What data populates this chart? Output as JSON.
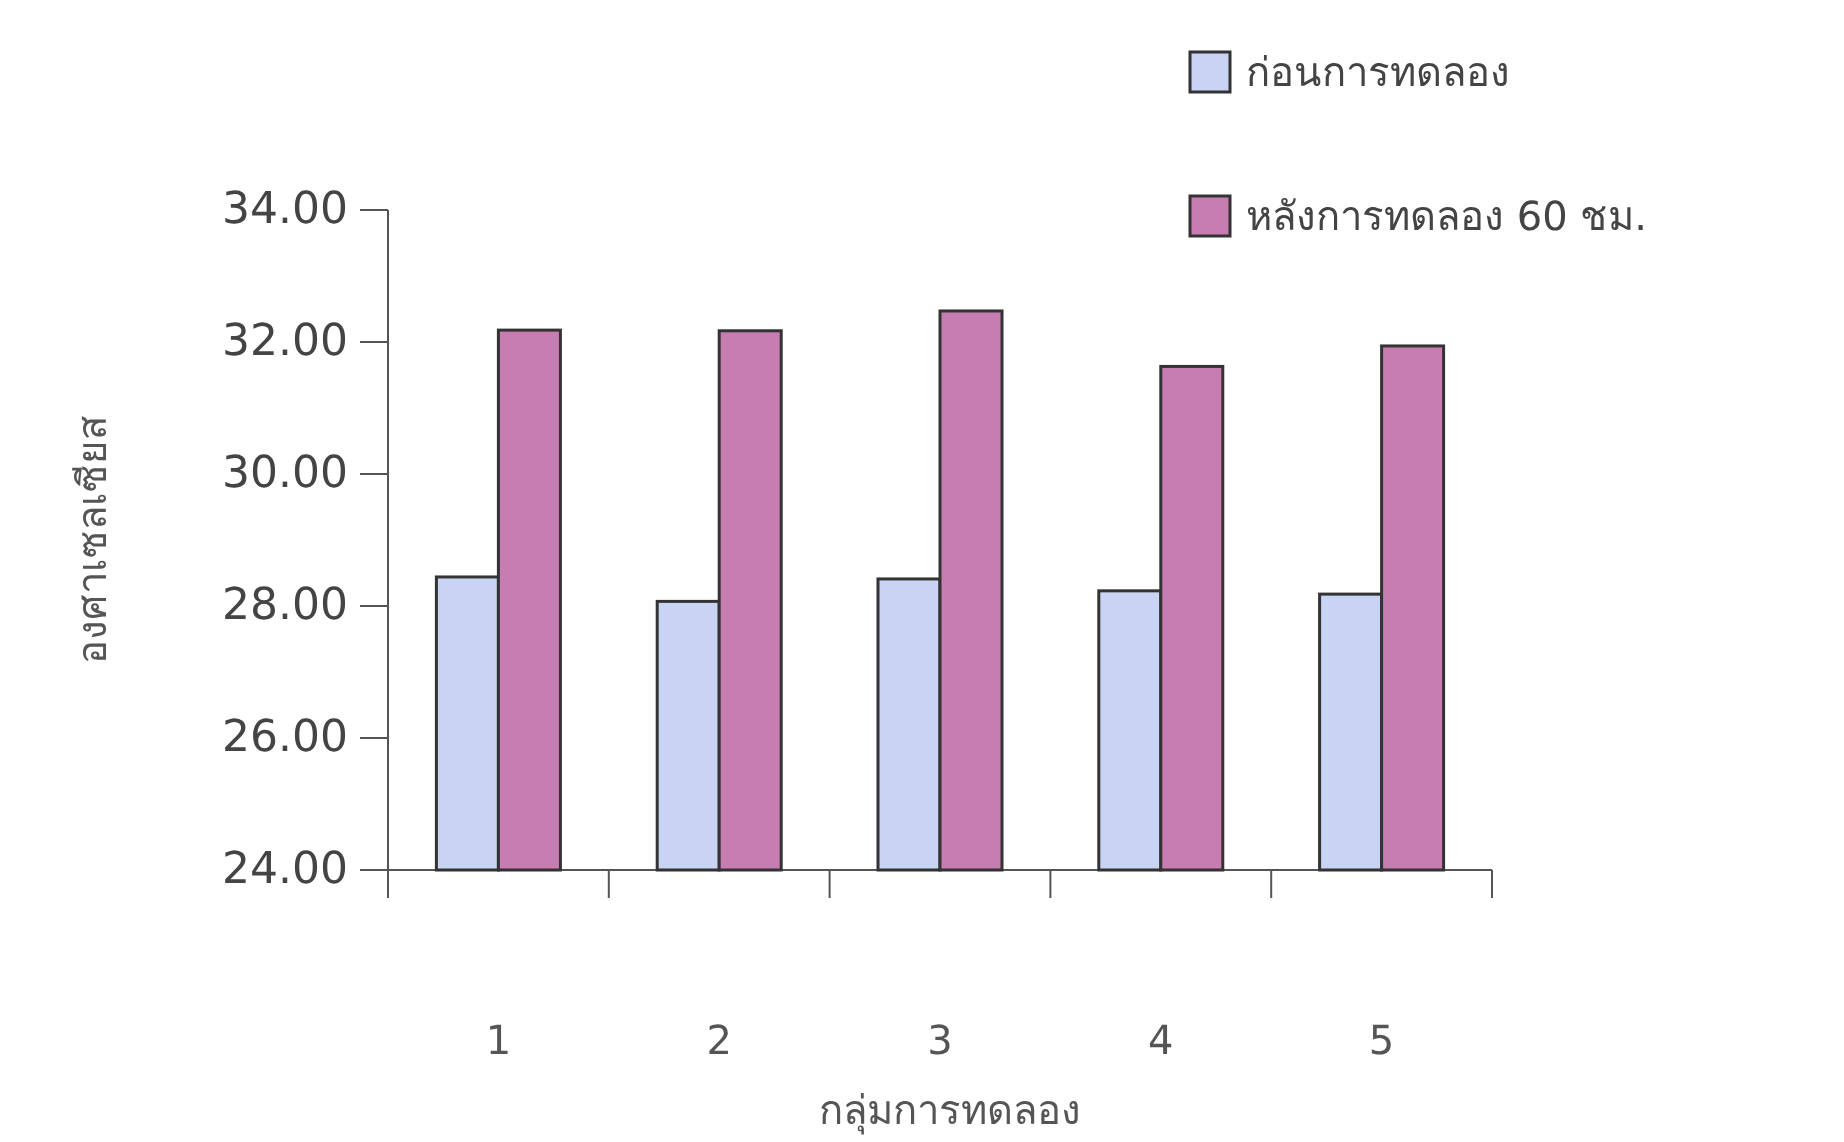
{
  "chart_data": {
    "type": "bar",
    "xlabel": "กลุ่มการทดลอง",
    "ylabel": "องศาเซลเซียส",
    "categories": [
      "1",
      "2",
      "3",
      "4",
      "5"
    ],
    "series": [
      {
        "name": "ก่อนการทดลอง",
        "color": "#c9d3f3",
        "values": [
          28.44,
          28.07,
          28.41,
          28.23,
          28.18
        ]
      },
      {
        "name": "หลังการทดลอง 60 ชม.",
        "color": "#c87db2",
        "values": [
          32.18,
          32.17,
          32.47,
          31.63,
          31.94
        ]
      }
    ],
    "ylim": [
      24,
      34
    ],
    "yticks": [
      {
        "value": 24,
        "label": "24.00"
      },
      {
        "value": 26,
        "label": "26.00"
      },
      {
        "value": 28,
        "label": "28.00"
      },
      {
        "value": 30,
        "label": "30.00"
      },
      {
        "value": 32,
        "label": "32.00"
      },
      {
        "value": 34,
        "label": "34.00"
      }
    ],
    "legend": "top right"
  }
}
